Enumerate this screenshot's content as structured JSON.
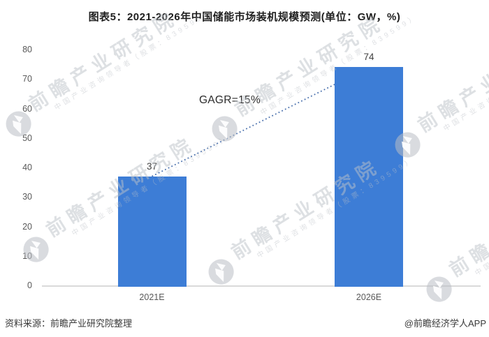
{
  "header": {
    "title": "图表5：2021-2026年中国储能市场装机规模预测(单位：GW，%)"
  },
  "chart_data": {
    "type": "bar",
    "categories": [
      "2021E",
      "2026E"
    ],
    "values": [
      37,
      74
    ],
    "title": "图表5：2021-2026年中国储能市场装机规模预测(单位：GW，%)",
    "xlabel": "",
    "ylabel": "",
    "ylim": [
      0,
      80
    ],
    "yticks": [
      0,
      10,
      20,
      30,
      40,
      50,
      60,
      70,
      80
    ],
    "grid": false,
    "legend": false,
    "annotation": "GAGR=15%",
    "annotation_style": "dotted line connecting bar tops",
    "bar_color": "#3D7DD6",
    "trend_line_color": "#4C72AE",
    "axis_line_color": "#D9D9D9",
    "tick_label_color": "#595959",
    "value_label_color": "#404040"
  },
  "footer": {
    "source": "资料来源：前瞻产业研究院整理",
    "credit": "@前瞻经济学人APP"
  },
  "watermark": {
    "brand": "前瞻产业研究院",
    "tagline": "中国产业咨询领导者（股票：839599）"
  }
}
